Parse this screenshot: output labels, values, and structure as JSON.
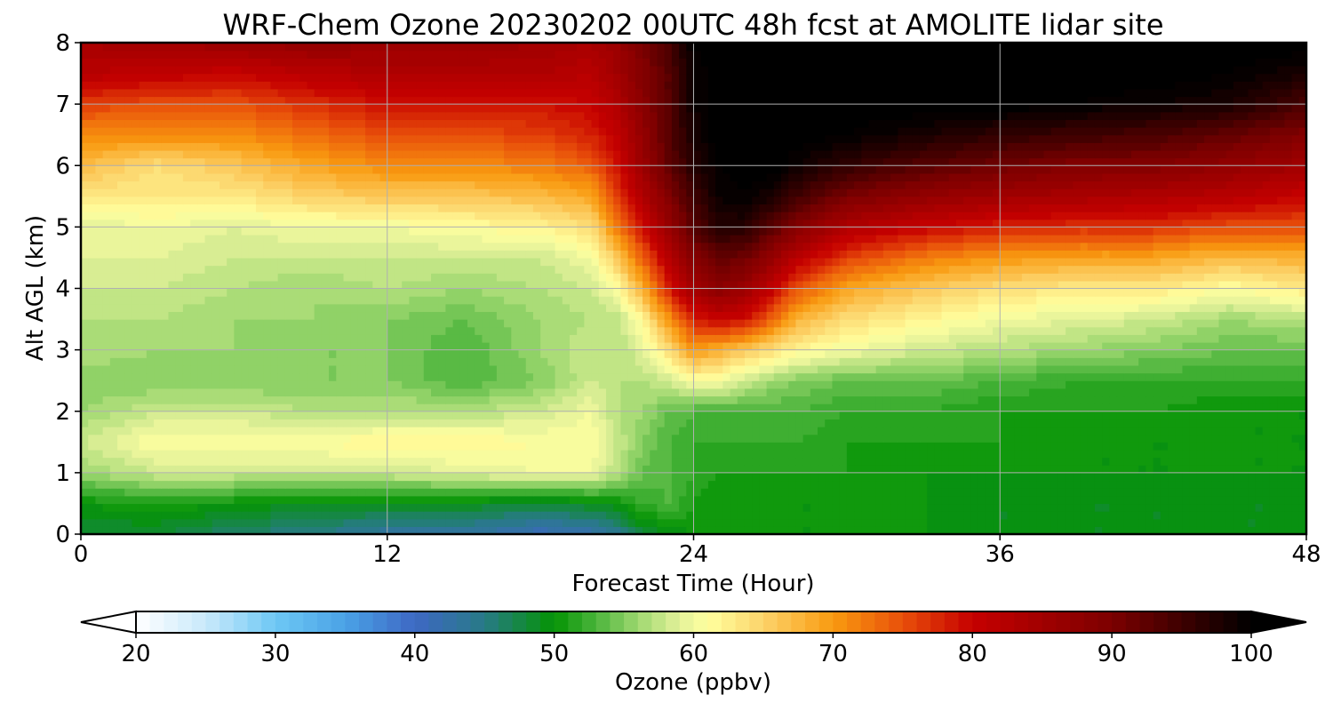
{
  "chart_data": {
    "type": "heatmap",
    "title": "WRF-Chem Ozone  20230202 00UTC 48h fcst at AMOLITE lidar site",
    "xlabel": "Forecast Time (Hour)",
    "ylabel": "Alt AGL (km)",
    "xlim": [
      0,
      48
    ],
    "ylim": [
      0,
      8
    ],
    "xticks": [
      "0",
      "12",
      "24",
      "36",
      "48"
    ],
    "yticks": [
      "0",
      "1",
      "2",
      "3",
      "4",
      "5",
      "6",
      "7",
      "8"
    ],
    "grid": true,
    "x": [
      0,
      3,
      6,
      9,
      12,
      15,
      18,
      20,
      21,
      22,
      23,
      24,
      25,
      26,
      27,
      28,
      30,
      33,
      36,
      39,
      42,
      45,
      48
    ],
    "y": [
      0,
      0.5,
      1,
      1.5,
      2,
      2.5,
      3,
      3.5,
      4,
      4.5,
      5,
      5.5,
      6,
      6.5,
      7,
      7.5,
      8
    ],
    "z": [
      [
        48,
        48,
        46,
        45,
        43,
        43,
        41,
        42,
        44,
        48,
        49,
        50,
        50,
        50,
        50,
        50,
        50,
        50,
        49,
        49,
        49,
        49,
        49
      ],
      [
        50,
        51,
        50,
        49,
        49,
        49,
        48,
        49,
        50,
        52,
        53,
        51,
        50,
        50,
        50,
        50,
        50,
        50,
        49,
        49,
        49,
        49,
        49
      ],
      [
        56,
        58,
        58,
        58,
        58,
        59,
        60,
        60,
        57,
        54,
        53,
        52,
        51,
        51,
        51,
        51,
        51,
        50,
        50,
        50,
        50,
        50,
        50
      ],
      [
        58,
        61,
        61,
        61,
        62,
        62,
        61,
        61,
        58,
        55,
        53,
        52,
        52,
        52,
        52,
        52,
        51,
        51,
        51,
        50,
        50,
        50,
        50
      ],
      [
        56,
        58,
        58,
        57,
        57,
        57,
        58,
        60,
        57,
        56,
        54,
        53,
        53,
        53,
        53,
        53,
        52,
        52,
        51,
        51,
        51,
        50,
        50
      ],
      [
        55,
        55,
        55,
        55,
        55,
        53,
        55,
        58,
        57,
        57,
        58,
        61,
        60,
        58,
        56,
        55,
        54,
        54,
        53,
        52,
        52,
        52,
        52
      ],
      [
        57,
        56,
        56,
        55,
        55,
        53,
        56,
        58,
        57,
        59,
        64,
        70,
        68,
        66,
        64,
        62,
        60,
        58,
        57,
        56,
        55,
        54,
        54
      ],
      [
        57,
        57,
        56,
        56,
        55,
        54,
        56,
        57,
        57,
        62,
        70,
        78,
        80,
        79,
        74,
        68,
        64,
        62,
        60,
        59,
        58,
        56,
        57
      ],
      [
        58,
        58,
        57,
        56,
        57,
        56,
        57,
        58,
        61,
        68,
        78,
        85,
        88,
        86,
        81,
        75,
        69,
        66,
        64,
        63,
        63,
        61,
        63
      ],
      [
        59,
        59,
        58,
        58,
        58,
        58,
        58,
        60,
        66,
        74,
        82,
        89,
        92,
        91,
        87,
        82,
        76,
        72,
        70,
        69,
        69,
        67,
        68
      ],
      [
        59,
        60,
        59,
        60,
        60,
        61,
        62,
        64,
        72,
        79,
        86,
        93,
        97,
        97,
        93,
        89,
        83,
        80,
        78,
        77,
        77,
        75,
        75
      ],
      [
        63,
        63,
        63,
        65,
        66,
        66,
        67,
        69,
        76,
        83,
        89,
        95,
        99,
        100,
        98,
        95,
        90,
        87,
        85,
        84,
        83,
        82,
        80
      ],
      [
        67,
        64,
        66,
        69,
        71,
        71,
        72,
        74,
        79,
        86,
        92,
        97,
        100,
        101,
        101,
        99,
        96,
        93,
        91,
        89,
        89,
        87,
        85
      ],
      [
        71,
        71,
        71,
        73,
        75,
        75,
        76,
        78,
        81,
        87,
        93,
        98,
        101,
        101,
        101,
        101,
        100,
        98,
        96,
        95,
        94,
        92,
        89
      ],
      [
        76,
        75,
        75,
        77,
        79,
        79,
        79,
        80,
        83,
        88,
        93,
        99,
        101,
        101,
        101,
        101,
        101,
        101,
        101,
        100,
        99,
        98,
        94
      ],
      [
        82,
        81,
        80,
        82,
        83,
        83,
        83,
        82,
        85,
        89,
        93,
        99,
        101,
        101,
        101,
        101,
        101,
        101,
        101,
        101,
        101,
        100,
        98
      ],
      [
        84,
        85,
        86,
        87,
        86,
        86,
        85,
        84,
        86,
        90,
        94,
        100,
        101,
        101,
        101,
        101,
        101,
        101,
        101,
        101,
        101,
        101,
        101
      ]
    ],
    "colorbar": {
      "label": "Ozone  (ppbv)",
      "min": 20,
      "max": 100,
      "ticks": [
        "20",
        "30",
        "40",
        "50",
        "60",
        "70",
        "80",
        "90",
        "100"
      ],
      "extend": "both",
      "orientation": "horizontal",
      "placement": "bottom",
      "stops": [
        {
          "v": 20,
          "c": "#ffffff"
        },
        {
          "v": 25,
          "c": "#c9e9fb"
        },
        {
          "v": 30,
          "c": "#6ec8f4"
        },
        {
          "v": 35,
          "c": "#4aa2e6"
        },
        {
          "v": 40,
          "c": "#3e68c4"
        },
        {
          "v": 45,
          "c": "#287a86"
        },
        {
          "v": 50,
          "c": "#049404"
        },
        {
          "v": 53,
          "c": "#4bb43b"
        },
        {
          "v": 56,
          "c": "#9ed870"
        },
        {
          "v": 59,
          "c": "#e3f19a"
        },
        {
          "v": 61,
          "c": "#ffff9f"
        },
        {
          "v": 65,
          "c": "#fcd36a"
        },
        {
          "v": 70,
          "c": "#f99a10"
        },
        {
          "v": 75,
          "c": "#e84f0a"
        },
        {
          "v": 80,
          "c": "#c60000"
        },
        {
          "v": 90,
          "c": "#7c0000"
        },
        {
          "v": 100,
          "c": "#000000"
        }
      ]
    }
  }
}
